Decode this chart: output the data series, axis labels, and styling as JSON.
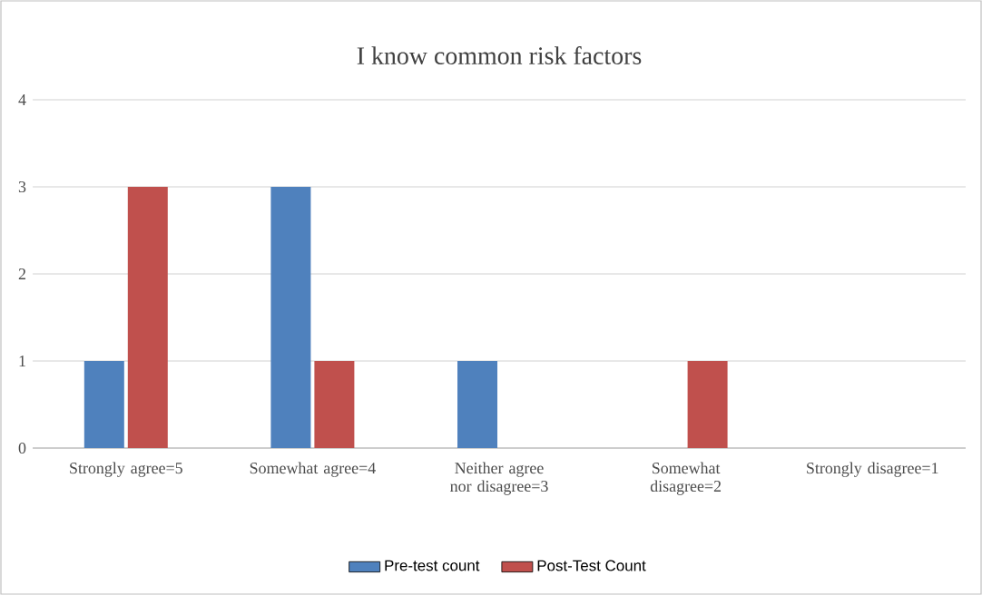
{
  "chart_data": {
    "type": "bar",
    "title": "I know common risk factors",
    "categories": [
      "Strongly agree=5",
      "Somewhat agree=4",
      "Neither agree nor disagree=3",
      "Somewhat disagree=2",
      "Strongly disagree=1"
    ],
    "series": [
      {
        "name": "Pre-test count",
        "color": "#4f81bd",
        "values": [
          1,
          3,
          1,
          0,
          0
        ]
      },
      {
        "name": "Post-Test Count",
        "color": "#c0504d",
        "values": [
          3,
          1,
          0,
          1,
          0
        ]
      }
    ],
    "ylim": [
      0,
      4
    ],
    "yticks": [
      0,
      1,
      2,
      3,
      4
    ],
    "grid": "y",
    "legend": "bottom"
  }
}
